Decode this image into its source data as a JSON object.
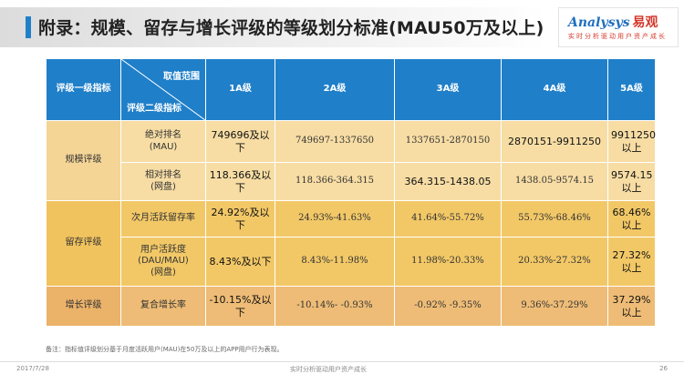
{
  "title": "附录：规模、留存与增长评级的等级划分标准(MAU50万及以上)",
  "logo": {
    "brand_en": "Analysys",
    "brand_cn": "易观",
    "tagline": "实时分析驱动用户资产成长"
  },
  "table": {
    "header": {
      "col1": "评级一级指标",
      "diag_top": "取值范围",
      "diag_bottom": "评级二级指标",
      "grades": [
        "1A级",
        "2A级",
        "3A级",
        "4A级",
        "5A级"
      ]
    },
    "groups": [
      {
        "category": "规模评级",
        "rows": [
          {
            "indicator": [
              "绝对排名",
              "(MAU)"
            ],
            "values": [
              "749696及以下",
              "749697-1337650",
              "1337651-2870150",
              "2870151-9911250",
              "9911250以上"
            ]
          },
          {
            "indicator": [
              "相对排名",
              "(网盘)"
            ],
            "values": [
              "118.366及以下",
              "118.366-364.315",
              "364.315-1438.05",
              "1438.05-9574.15",
              "9574.15以上"
            ]
          }
        ]
      },
      {
        "category": "留存评级",
        "rows": [
          {
            "indicator": [
              "次月活跃留存率"
            ],
            "values": [
              "24.92%及以下",
              "24.93%-41.63%",
              "41.64%-55.72%",
              "55.73%-68.46%",
              "68.46%以上"
            ]
          },
          {
            "indicator": [
              "用户活跃度",
              "(DAU/MAU)",
              "(网盘)"
            ],
            "values": [
              "8.43%及以下",
              "8.43%-11.98%",
              "11.98%-20.33%",
              "20.33%-27.32%",
              "27.32%以上"
            ]
          }
        ]
      },
      {
        "category": "增长评级",
        "rows": [
          {
            "indicator": [
              "复合增长率"
            ],
            "values": [
              "-10.15%及以下",
              "-10.14%- -0.93%",
              "-0.92% -9.35%",
              "9.36%-37.29%",
              "37.29%以上"
            ]
          }
        ]
      }
    ]
  },
  "note": "备注：指标值评级划分基于月度活跃用户(MAU)在50万及以上的APP用户行为表现。",
  "footer": {
    "date": "2017/7/28",
    "center": "实时分析驱动用户资产成长",
    "page": "26"
  },
  "colors": {
    "header_blue": "#1f7fc9",
    "scale_row": "#f7dda4",
    "retain_row": "#f2c867",
    "growth_row": "#eebc76"
  }
}
